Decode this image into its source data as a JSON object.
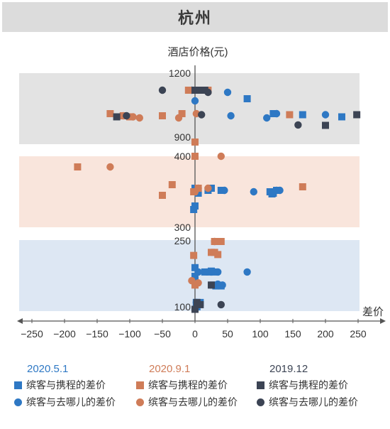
{
  "chart_data": {
    "type": "scatter",
    "title": "杭州",
    "ylabel": "酒店价格(元)",
    "xlabel": "差价",
    "x_ticks": [
      "−250",
      "−200",
      "−150",
      "−100",
      "−50",
      "0",
      "50",
      "100",
      "150",
      "200",
      "250"
    ],
    "xlim": [
      -250,
      250
    ],
    "bands": [
      {
        "name": "900-1200",
        "color": "#e3e3e3",
        "ticks": [
          "1200",
          "900"
        ]
      },
      {
        "name": "300-400",
        "color": "#f9e5dc",
        "ticks": [
          "400",
          "300"
        ]
      },
      {
        "name": "100-250",
        "color": "#dde7f3",
        "ticks": [
          "250",
          "100"
        ]
      }
    ],
    "groups": [
      {
        "date": "2020.5.1",
        "color": "#2e78c4"
      },
      {
        "date": "2020.9.1",
        "color": "#cf7c58"
      },
      {
        "date": "2019.12",
        "color": "#3c4454"
      }
    ],
    "series": [
      {
        "group": 0,
        "shape": "square",
        "label": "缤客与携程的差价",
        "points": [
          [
            80,
            1080
          ],
          [
            0,
            1120
          ],
          [
            120,
            1010
          ],
          [
            165,
            1005
          ],
          [
            225,
            995
          ],
          [
            0,
            355
          ],
          [
            5,
            348
          ],
          [
            20,
            352
          ],
          [
            25,
            355
          ],
          [
            40,
            352
          ],
          [
            115,
            350
          ],
          [
            118,
            347
          ],
          [
            120,
            348
          ],
          [
            125,
            352
          ],
          [
            0,
            330
          ],
          [
            -2,
            325
          ],
          [
            0,
            190
          ],
          [
            15,
            180
          ],
          [
            22,
            180
          ],
          [
            25,
            182
          ],
          [
            30,
            180
          ],
          [
            0,
            170
          ],
          [
            0,
            160
          ],
          [
            28,
            150
          ],
          [
            32,
            148
          ],
          [
            40,
            148
          ],
          [
            2,
            110
          ],
          [
            5,
            106
          ],
          [
            8,
            110
          ],
          [
            3,
            100
          ]
        ]
      },
      {
        "group": 0,
        "shape": "circle",
        "label": "缤客与去哪儿的差价",
        "points": [
          [
            0,
            1070
          ],
          [
            50,
            1110
          ],
          [
            -5,
            1120
          ],
          [
            55,
            1000
          ],
          [
            110,
            990
          ],
          [
            125,
            1010
          ],
          [
            200,
            1005
          ],
          [
            0,
            352
          ],
          [
            45,
            352
          ],
          [
            90,
            350
          ],
          [
            125,
            352
          ],
          [
            130,
            352
          ],
          [
            5,
            180
          ],
          [
            25,
            180
          ],
          [
            35,
            180
          ],
          [
            80,
            180
          ],
          [
            35,
            152
          ],
          [
            42,
            150
          ],
          [
            2,
            110
          ]
        ]
      },
      {
        "group": 1,
        "shape": "square",
        "label": "缤客与携程的差价",
        "points": [
          [
            -10,
            1120
          ],
          [
            0,
            1120
          ],
          [
            20,
            1120
          ],
          [
            -130,
            1010
          ],
          [
            -110,
            1000
          ],
          [
            -100,
            995
          ],
          [
            -50,
            1000
          ],
          [
            -20,
            1010
          ],
          [
            145,
            1005
          ],
          [
            -180,
            385
          ],
          [
            0,
            400
          ],
          [
            -35,
            360
          ],
          [
            -50,
            345
          ],
          [
            165,
            357
          ],
          [
            5,
            355
          ],
          [
            -2,
            350
          ],
          [
            0,
            252
          ],
          [
            30,
            250
          ],
          [
            35,
            250
          ],
          [
            40,
            250
          ],
          [
            25,
            225
          ],
          [
            30,
            225
          ],
          [
            35,
            220
          ],
          [
            -2,
            218
          ],
          [
            0,
            150
          ]
        ]
      },
      {
        "group": 1,
        "shape": "circle",
        "label": "缤客与去哪儿的差价",
        "points": [
          [
            2,
            1010
          ],
          [
            -110,
            1000
          ],
          [
            -95,
            995
          ],
          [
            -85,
            990
          ],
          [
            -25,
            990
          ],
          [
            -130,
            385
          ],
          [
            40,
            400
          ],
          [
            0,
            350
          ],
          [
            5,
            355
          ],
          [
            20,
            355
          ],
          [
            30,
            250
          ],
          [
            -5,
            160
          ],
          [
            5,
            155
          ]
        ]
      },
      {
        "group": 2,
        "shape": "square",
        "label": "缤客与携程的差价",
        "points": [
          [
            0,
            1120
          ],
          [
            15,
            1120
          ],
          [
            -120,
            995
          ],
          [
            200,
            955
          ],
          [
            248,
            1005
          ],
          [
            10,
            1120
          ],
          [
            25,
            150
          ],
          [
            3,
            110
          ],
          [
            8,
            105
          ],
          [
            0,
            95
          ]
        ]
      },
      {
        "group": 2,
        "shape": "circle",
        "label": "缤客与去哪儿的差价",
        "points": [
          [
            -50,
            1120
          ],
          [
            20,
            1110
          ],
          [
            -105,
            1000
          ],
          [
            10,
            1005
          ],
          [
            158,
            957
          ],
          [
            40,
            105
          ]
        ]
      }
    ]
  }
}
